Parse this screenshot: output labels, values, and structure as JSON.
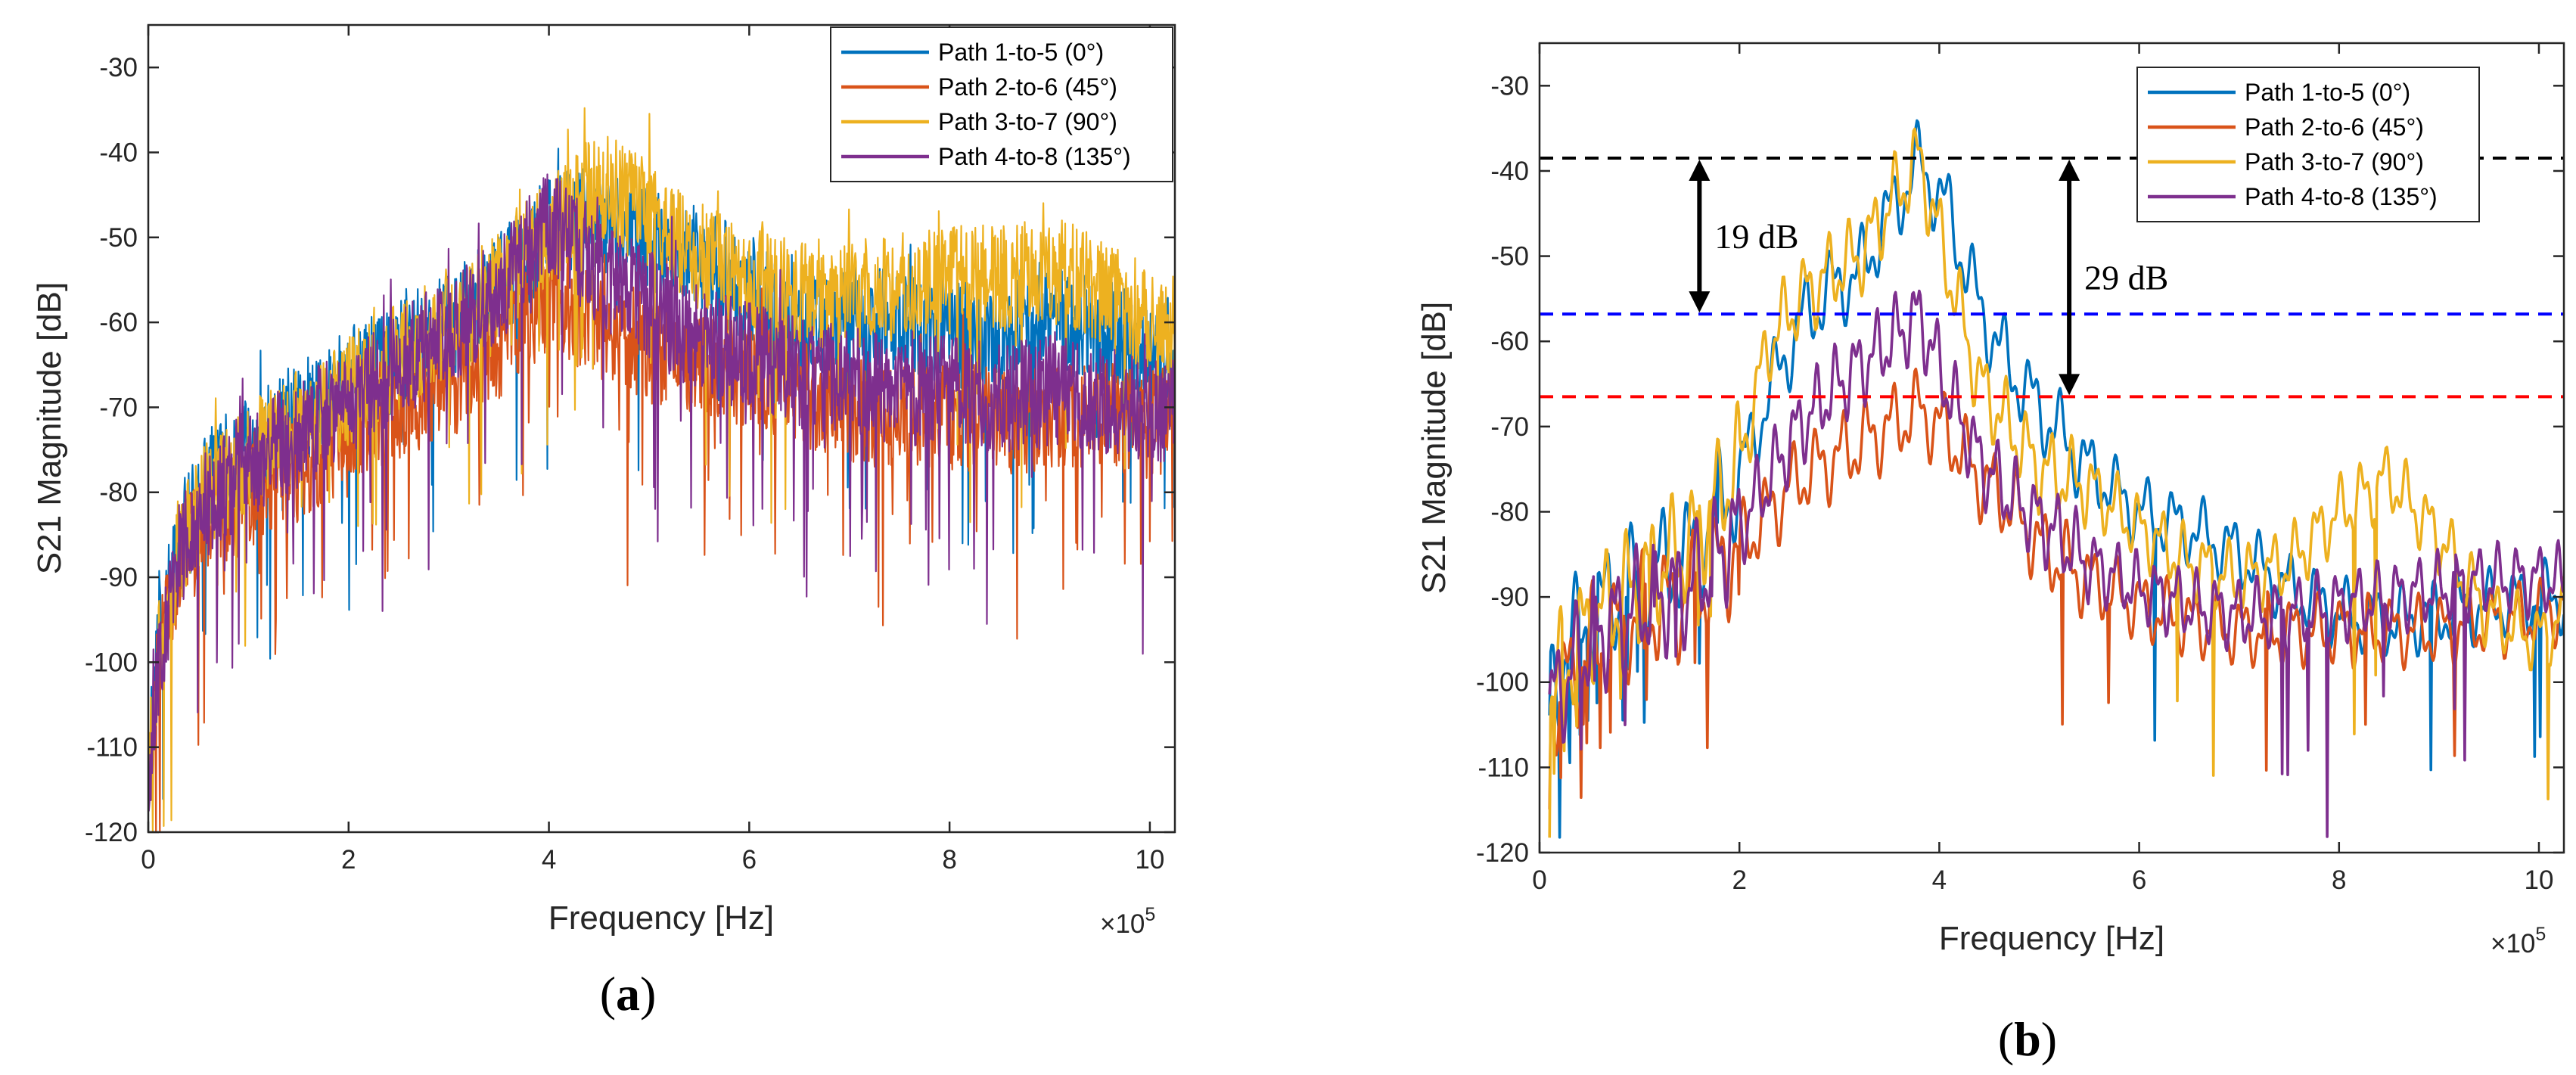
{
  "colors": {
    "path1": "#0072BD",
    "path2": "#D95319",
    "path3": "#EDB120",
    "path4": "#7E2F8E",
    "black_line": "#000000",
    "blue_line": "#0000FF",
    "red_line": "#FF0000"
  },
  "chart_data": [
    {
      "type": "line",
      "caption": {
        "open": "(",
        "letter": "a",
        "close": ")"
      },
      "xlabel": "Frequency [Hz]",
      "ylabel": "S21 Magnitude [dB]",
      "x_exponent_label": "×10",
      "x_exponent_power": "5",
      "xlim": [
        0,
        10.25
      ],
      "ylim": [
        -120,
        -25
      ],
      "xticks": [
        0,
        2,
        4,
        6,
        8,
        10
      ],
      "xtick_labels": [
        "0",
        "2",
        "4",
        "6",
        "8",
        "10"
      ],
      "yticks": [
        -120,
        -110,
        -100,
        -90,
        -80,
        -70,
        -60,
        -50,
        -40,
        -30
      ],
      "ytick_labels": [
        "-120",
        "-110",
        "-100",
        "-90",
        "-80",
        "-70",
        "-60",
        "-50",
        "-40",
        "-30"
      ],
      "legend_position": "top-right",
      "series": [
        {
          "name": "Path 1-to-5 (0°)",
          "color_key": "path1",
          "kind": "noisy",
          "x": [
            0,
            0.1,
            0.3,
            0.6,
            1.0,
            1.5,
            2.0,
            2.5,
            3.0,
            3.5,
            4.0,
            4.5,
            5.0,
            5.5,
            6.0,
            6.5,
            7.0,
            7.5,
            8.0,
            8.5,
            9.0,
            9.5,
            10.0,
            10.25
          ],
          "values": [
            -112,
            -98,
            -86,
            -79,
            -75,
            -71,
            -67,
            -64,
            -60,
            -56,
            -49,
            -48,
            -50,
            -53,
            -56,
            -60,
            -60,
            -60,
            -61,
            -62,
            -60,
            -61,
            -64,
            -63
          ]
        },
        {
          "name": "Path 2-to-6 (45°)",
          "color_key": "path2",
          "kind": "noisy",
          "x": [
            0,
            0.1,
            0.3,
            0.6,
            1.0,
            1.5,
            2.0,
            2.5,
            3.0,
            3.5,
            4.0,
            4.5,
            5.0,
            5.5,
            6.0,
            6.5,
            7.0,
            7.5,
            8.0,
            8.5,
            9.0,
            9.5,
            10.0,
            10.25
          ],
          "values": [
            -114,
            -100,
            -89,
            -83,
            -80,
            -77,
            -73,
            -70,
            -67,
            -63,
            -57,
            -60,
            -63,
            -65,
            -66,
            -68,
            -70,
            -71,
            -71,
            -72,
            -71,
            -71,
            -72,
            -71
          ]
        },
        {
          "name": "Path 3-to-7 (90°)",
          "color_key": "path3",
          "kind": "noisy",
          "x": [
            0,
            0.1,
            0.3,
            0.6,
            1.0,
            1.5,
            2.0,
            2.5,
            3.0,
            3.5,
            4.0,
            4.5,
            5.0,
            5.5,
            6.0,
            6.5,
            7.0,
            7.5,
            8.0,
            8.5,
            9.0,
            9.5,
            10.0,
            10.25
          ],
          "values": [
            -113,
            -99,
            -87,
            -80,
            -76,
            -72,
            -68,
            -64,
            -60,
            -56,
            -49,
            -44,
            -47,
            -52,
            -55,
            -57,
            -57,
            -56,
            -55,
            -55,
            -54,
            -56,
            -60,
            -61
          ]
        },
        {
          "name": "Path 4-to-8 (135°)",
          "color_key": "path4",
          "kind": "noisy",
          "x": [
            0,
            0.1,
            0.3,
            0.6,
            1.0,
            1.5,
            2.0,
            2.5,
            3.0,
            3.5,
            4.0,
            4.5,
            5.0,
            5.5,
            6.0,
            6.5,
            7.0,
            7.5,
            8.0,
            8.5,
            9.0,
            9.5,
            10.0,
            10.25
          ],
          "values": [
            -114,
            -100,
            -88,
            -81,
            -77,
            -73,
            -69,
            -65,
            -61,
            -56,
            -48,
            -54,
            -58,
            -62,
            -64,
            -66,
            -67,
            -68,
            -68,
            -69,
            -68,
            -69,
            -70,
            -70
          ]
        }
      ]
    },
    {
      "type": "line",
      "caption": {
        "open": "(",
        "letter": "b",
        "close": ")"
      },
      "xlabel": "Frequency [Hz]",
      "ylabel": "S21 Magnitude [dB]",
      "x_exponent_label": "×10",
      "x_exponent_power": "5",
      "xlim": [
        0,
        10.25
      ],
      "ylim": [
        -120,
        -25
      ],
      "xticks": [
        0,
        2,
        4,
        6,
        8,
        10
      ],
      "xtick_labels": [
        "0",
        "2",
        "4",
        "6",
        "8",
        "10"
      ],
      "yticks": [
        -120,
        -110,
        -100,
        -90,
        -80,
        -70,
        -60,
        -50,
        -40,
        -30
      ],
      "ytick_labels": [
        "-120",
        "-110",
        "-100",
        "-90",
        "-80",
        "-70",
        "-60",
        "-50",
        "-40",
        "-30"
      ],
      "legend_position": "top-right",
      "reference_lines": [
        {
          "y": -38.5,
          "color_key": "black_line",
          "style": "dashed"
        },
        {
          "y": -56.8,
          "color_key": "blue_line",
          "style": "dashed"
        },
        {
          "y": -66.5,
          "color_key": "red_line",
          "style": "dashed"
        }
      ],
      "annotations": [
        {
          "text": "19 dB",
          "x": 1.6,
          "y_top": -38.5,
          "y_bottom": -56.8
        },
        {
          "text": "29 dB",
          "x": 5.3,
          "y_top": -38.5,
          "y_bottom": -66.5
        }
      ],
      "series": [
        {
          "name": "Path 1-to-5 (0°)",
          "color_key": "path1",
          "kind": "smooth",
          "x": [
            0.1,
            0.5,
            1.0,
            1.5,
            2.0,
            2.3,
            2.6,
            2.9,
            3.2,
            3.5,
            3.8,
            4.1,
            4.4,
            4.7,
            5.0,
            5.5,
            6.0,
            6.5,
            7.0,
            7.5,
            8.0,
            8.5,
            9.0,
            9.5,
            10.0,
            10.25
          ],
          "values": [
            -100,
            -92,
            -88,
            -85,
            -76,
            -66,
            -58,
            -54,
            -52,
            -45,
            -39,
            -45,
            -56,
            -63,
            -68,
            -75,
            -80,
            -82,
            -85,
            -89,
            -92,
            -93,
            -92,
            -91,
            -90,
            -90
          ]
        },
        {
          "name": "Path 2-to-6 (45°)",
          "color_key": "path2",
          "kind": "smooth",
          "x": [
            0.1,
            0.5,
            1.0,
            1.5,
            2.0,
            2.3,
            2.6,
            2.9,
            3.2,
            3.5,
            3.8,
            4.1,
            4.4,
            4.7,
            5.0,
            5.5,
            6.0,
            6.5,
            7.0,
            7.5,
            8.0,
            8.5,
            9.0,
            9.5,
            10.0,
            10.25
          ],
          "values": [
            -103,
            -96,
            -92,
            -90,
            -84,
            -80,
            -76,
            -74,
            -72,
            -70,
            -68,
            -71,
            -76,
            -79,
            -84,
            -88,
            -91,
            -93,
            -94,
            -94,
            -94,
            -94,
            -94,
            -93,
            -92,
            -91
          ]
        },
        {
          "name": "Path 3-to-7 (90°)",
          "color_key": "path3",
          "kind": "smooth",
          "x": [
            0.1,
            0.5,
            1.0,
            1.5,
            2.0,
            2.3,
            2.6,
            2.9,
            3.2,
            3.5,
            3.8,
            4.1,
            4.4,
            4.7,
            5.0,
            5.5,
            6.0,
            6.5,
            7.0,
            7.5,
            8.0,
            8.5,
            9.0,
            9.5,
            10.0,
            10.25
          ],
          "values": [
            -101,
            -93,
            -88,
            -84,
            -74,
            -60,
            -55,
            -52,
            -50,
            -44,
            -38.5,
            -52,
            -65,
            -70,
            -75,
            -77,
            -82,
            -86,
            -88,
            -86,
            -80,
            -76,
            -83,
            -92,
            -95,
            -92
          ]
        },
        {
          "name": "Path 4-to-8 (135°)",
          "color_key": "path4",
          "kind": "smooth",
          "x": [
            0.1,
            0.5,
            1.0,
            1.5,
            2.0,
            2.3,
            2.6,
            2.9,
            3.2,
            3.5,
            3.8,
            4.1,
            4.4,
            4.7,
            5.0,
            5.5,
            6.0,
            6.5,
            7.0,
            7.5,
            8.0,
            8.5,
            9.0,
            9.5,
            10.0,
            10.25
          ],
          "values": [
            -103,
            -95,
            -91,
            -89,
            -82,
            -76,
            -70,
            -66,
            -63,
            -60,
            -57,
            -66,
            -74,
            -78,
            -81,
            -86,
            -89,
            -91,
            -92,
            -92,
            -91,
            -90,
            -89,
            -88,
            -88,
            -88
          ]
        }
      ]
    }
  ]
}
